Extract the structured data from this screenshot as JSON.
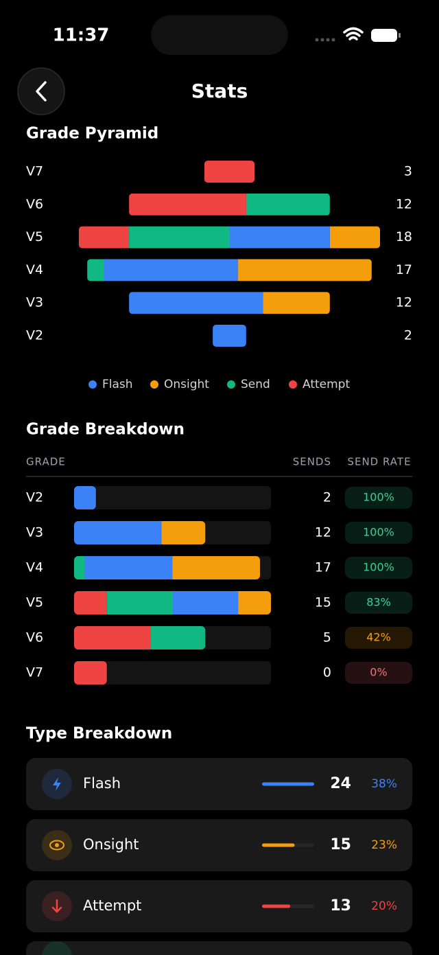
{
  "status_bar": {
    "time": "11:37"
  },
  "header": {
    "title": "Stats"
  },
  "grade_pyramid": {
    "title": "Grade Pyramid",
    "grades": [
      "V7",
      "V6",
      "V5",
      "V4",
      "V3",
      "V2"
    ],
    "totals": [
      3,
      12,
      18,
      17,
      12,
      2
    ],
    "series": [
      {
        "name": "Flash",
        "color": "#3b82f6",
        "values": [
          0,
          0,
          6,
          8,
          8,
          2
        ]
      },
      {
        "name": "Onsight",
        "color": "#f59e0b",
        "values": [
          0,
          0,
          3,
          8,
          4,
          0
        ]
      },
      {
        "name": "Send",
        "color": "#10b981",
        "values": [
          0,
          5,
          6,
          1,
          0,
          0
        ]
      },
      {
        "name": "Attempt",
        "color": "#ef4444",
        "values": [
          3,
          7,
          3,
          0,
          0,
          0
        ]
      }
    ]
  },
  "grade_breakdown": {
    "title": "Grade Breakdown",
    "columns": [
      "GRADE",
      "SENDS",
      "SEND RATE"
    ],
    "rows": [
      {
        "grade": "V2",
        "sends": 2,
        "send_rate": "100%",
        "rate_color": "#34d399"
      },
      {
        "grade": "V3",
        "sends": 12,
        "send_rate": "100%",
        "rate_color": "#34d399"
      },
      {
        "grade": "V4",
        "sends": 17,
        "send_rate": "100%",
        "rate_color": "#34d399"
      },
      {
        "grade": "V5",
        "sends": 15,
        "send_rate": "83%",
        "rate_color": "#34d399"
      },
      {
        "grade": "V6",
        "sends": 5,
        "send_rate": "42%",
        "rate_color": "#f59e0b"
      },
      {
        "grade": "V7",
        "sends": 0,
        "send_rate": "0%",
        "rate_color": "#f87171"
      }
    ]
  },
  "type_breakdown": {
    "title": "Type Breakdown",
    "items": [
      {
        "name": "Flash",
        "count": 24,
        "share": "38%",
        "color": "#3b82f6"
      },
      {
        "name": "Onsight",
        "count": 15,
        "share": "23%",
        "color": "#f59e0b"
      },
      {
        "name": "Attempt",
        "count": 13,
        "share": "20%",
        "color": "#ef4444"
      }
    ]
  }
}
